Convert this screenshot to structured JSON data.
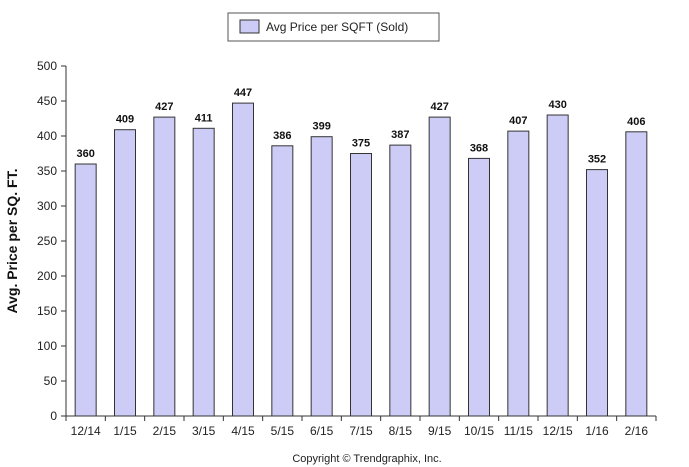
{
  "chart_data": {
    "type": "bar",
    "categories": [
      "12/14",
      "1/15",
      "2/15",
      "3/15",
      "4/15",
      "5/15",
      "6/15",
      "7/15",
      "8/15",
      "9/15",
      "10/15",
      "11/15",
      "12/15",
      "1/16",
      "2/16"
    ],
    "series": [
      {
        "name": "Avg Price per SQFT (Sold)",
        "values": [
          360,
          409,
          427,
          411,
          447,
          386,
          399,
          375,
          387,
          427,
          368,
          407,
          430,
          352,
          406
        ],
        "color": "#ccccf7",
        "stroke": "#333333"
      }
    ],
    "ylabel": "Avg. Price per SQ. FT.",
    "ylim": [
      0,
      500
    ],
    "yticks": [
      0,
      50,
      100,
      150,
      200,
      250,
      300,
      350,
      400,
      450,
      500
    ],
    "legend": "top-center",
    "grid": false,
    "data_labels": true
  },
  "footer": {
    "copyright": "Copyright © Trendgraphix, Inc."
  }
}
